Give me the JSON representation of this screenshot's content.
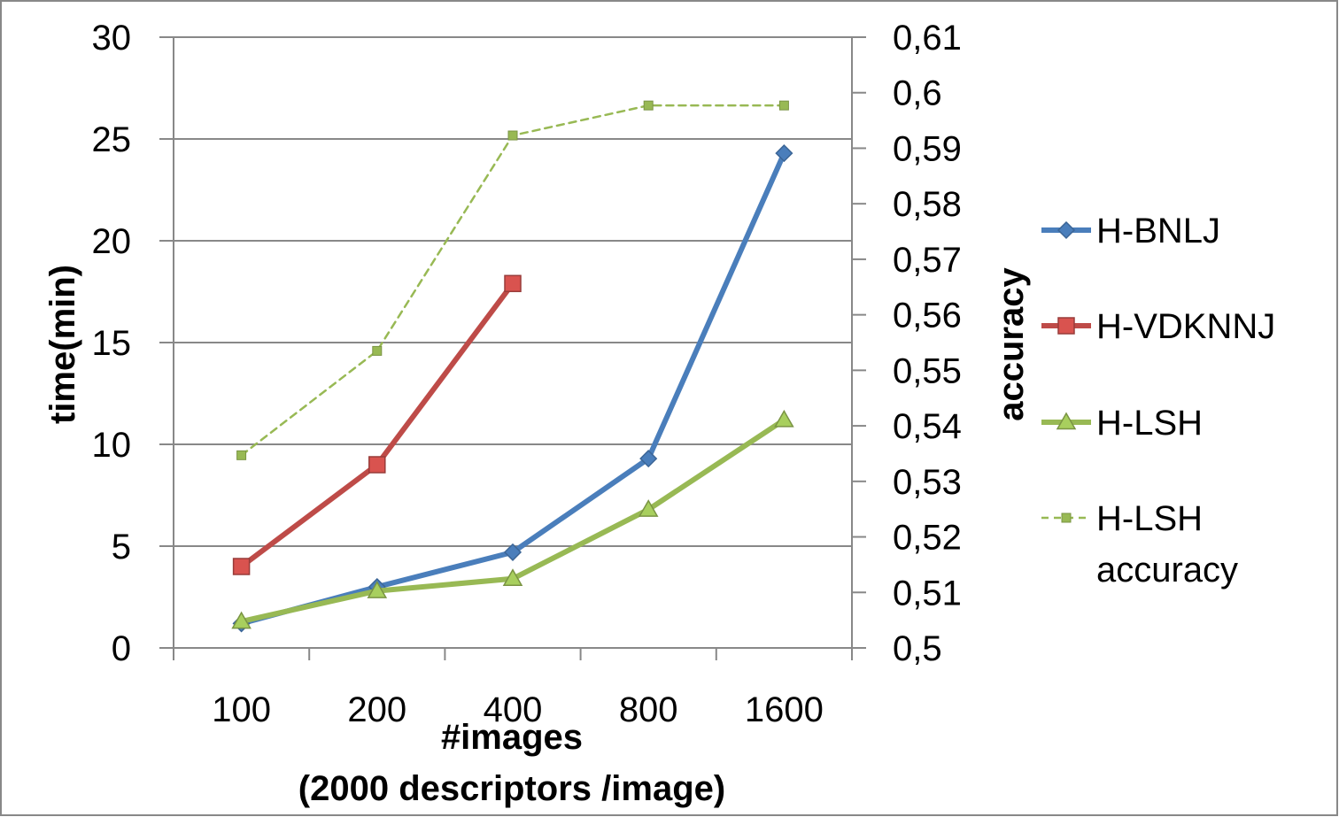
{
  "chart_data": {
    "type": "line",
    "categories": [
      "100",
      "200",
      "400",
      "800",
      "1600"
    ],
    "xlabel": [
      "#images",
      "(2000 descriptors /image)"
    ],
    "ylabel": "time(min)",
    "y2label": "accuracy",
    "ylim": [
      0,
      30
    ],
    "y2lim": [
      0.5,
      0.61
    ],
    "yticks": [
      "0",
      "5",
      "10",
      "15",
      "20",
      "25",
      "30"
    ],
    "y2ticks": [
      "0,5",
      "0,51",
      "0,52",
      "0,53",
      "0,54",
      "0,55",
      "0,56",
      "0,57",
      "0,58",
      "0,59",
      "0,6",
      "0,61"
    ],
    "grid": true,
    "legend_position": "right",
    "series": [
      {
        "name": "H-BNLJ",
        "axis": "left",
        "color": "#4a7ebb",
        "marker": "diamond",
        "style": "solid",
        "values": [
          1.2,
          3.0,
          4.7,
          9.3,
          24.3
        ]
      },
      {
        "name": "H-VDKNNJ",
        "axis": "left",
        "color": "#be4b48",
        "marker": "square",
        "style": "solid",
        "values": [
          4.0,
          9.0,
          17.9,
          null,
          null
        ]
      },
      {
        "name": "H-LSH",
        "axis": "left",
        "color": "#98b954",
        "marker": "triangle",
        "style": "solid",
        "values": [
          1.3,
          2.8,
          3.4,
          6.8,
          11.2
        ]
      },
      {
        "name": "H-LSH accuracy",
        "axis": "right",
        "color": "#98b954",
        "marker": "small-square",
        "style": "dashed",
        "values": [
          0.5347,
          0.5535,
          0.5923,
          0.5977,
          0.5977
        ]
      }
    ]
  }
}
